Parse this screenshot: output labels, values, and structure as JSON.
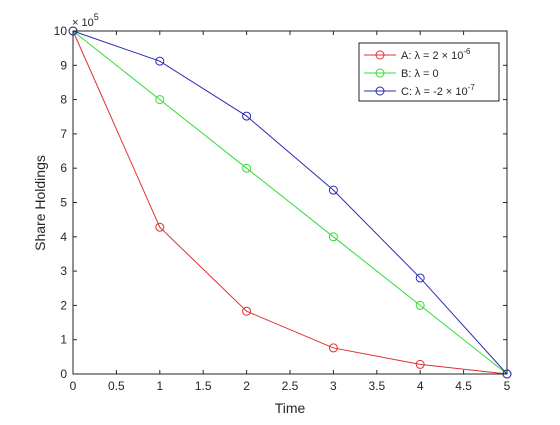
{
  "chart_data": {
    "type": "line",
    "x": [
      0,
      1,
      2,
      3,
      4,
      5
    ],
    "xlabel": "Time",
    "ylabel": "Share Holdings",
    "xlim": [
      0,
      5
    ],
    "ylim": [
      0,
      10
    ],
    "y_exponent_label": "× 10",
    "y_exponent_power": "5",
    "xticks": [
      "0",
      "0.5",
      "1",
      "1.5",
      "2",
      "2.5",
      "3",
      "3.5",
      "4",
      "4.5",
      "5"
    ],
    "yticks": [
      "0",
      "1",
      "2",
      "3",
      "4",
      "5",
      "6",
      "7",
      "8",
      "9",
      "10"
    ],
    "grid": false,
    "legend_position": "top-right",
    "series": [
      {
        "name": "A: λ = 2 × 10",
        "name_sup": "-6",
        "color": "#e03030",
        "values": [
          10.0,
          4.28,
          1.83,
          0.76,
          0.28,
          0.0
        ]
      },
      {
        "name": "B: λ = 0",
        "name_sup": "",
        "color": "#33dd33",
        "values": [
          10.0,
          8.0,
          6.0,
          4.0,
          2.0,
          0.0
        ]
      },
      {
        "name": "C: λ = -2 × 10",
        "name_sup": "-7",
        "color": "#2b2bb5",
        "values": [
          10.0,
          9.12,
          7.52,
          5.36,
          2.8,
          0.0
        ]
      }
    ]
  }
}
